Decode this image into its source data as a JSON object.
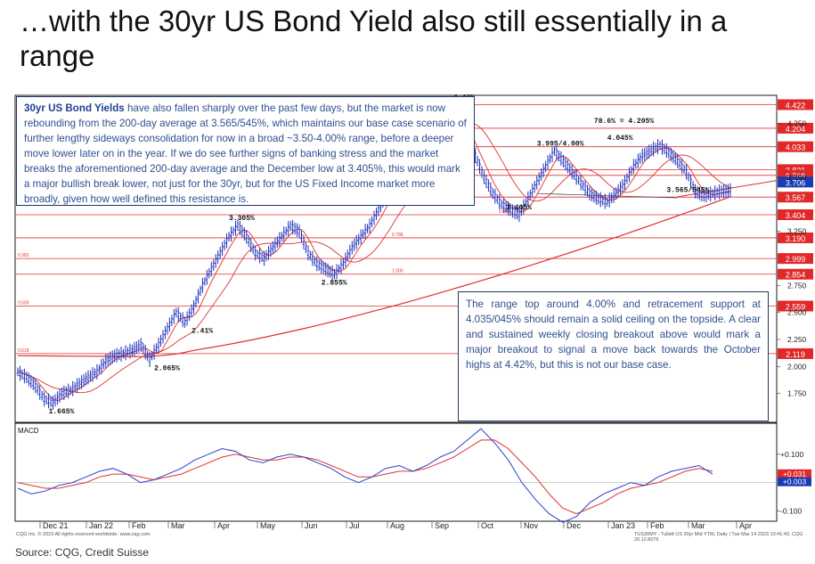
{
  "title": "…with the 30yr US Bond Yield also still essentially in a range",
  "callout_top": {
    "bold": "30yr US Bond Yields",
    "text": " have also fallen sharply over the past few days, but the market is now rebounding from the 200-day average at 3.565/545%, which maintains our base case scenario of further lengthy sideways consolidation for now in a broad ~3.50-4.00% range, before a deeper move lower later on in the year. If we do see further signs of banking stress and the market breaks the aforementioned 200-day average and the December low at 3.405%, this would mark a major bullish break lower, not just for the 30yr, but for the US Fixed Income market more broadly, given how well defined this resistance is."
  },
  "callout_bottom": {
    "text": "The range top around 4.00% and retracement support at 4.035/045% should remain a solid ceiling on the topside. A clear and sustained weekly closing breakout above would mark a major breakout to signal a move back towards the October highs at 4.42%, but this is not our base case."
  },
  "source": "Source: CQG, Credit Suisse",
  "footer_left": "CQG Inc. © 2023 All rights reserved worldwide. www.cqg.com",
  "footer_right": "TUS30MY - Tullett US 30yr Mid YTM, Daily | Tue Mar 14 2023 10:41:43, CQG 20.12.8076",
  "chart_data": {
    "type": "line",
    "ylim": [
      1.5,
      4.5
    ],
    "x": [
      0,
      4,
      8,
      12,
      16,
      20,
      24,
      28,
      32,
      36,
      40,
      44,
      48,
      52,
      56,
      60,
      64,
      68,
      72,
      76,
      80,
      84,
      88,
      92,
      96,
      100,
      104,
      108,
      112,
      116,
      120,
      124,
      128,
      132,
      136,
      140,
      144,
      148,
      152,
      156,
      160,
      164,
      168,
      172,
      176,
      180,
      184,
      188,
      192,
      196,
      200,
      204,
      208,
      212,
      216,
      220,
      224,
      228,
      232,
      236,
      240,
      244,
      248,
      252,
      256,
      260,
      264,
      268,
      272,
      276,
      280,
      284,
      288,
      292,
      296,
      300,
      304,
      308,
      312,
      316,
      320,
      324
    ],
    "series": [
      {
        "values": [
          1.95,
          1.9,
          1.82,
          1.7,
          1.665,
          1.75,
          1.78,
          1.84,
          1.9,
          1.95,
          2.05,
          2.1,
          2.12,
          2.15,
          2.2,
          2.065,
          2.2,
          2.35,
          2.5,
          2.41,
          2.55,
          2.75,
          2.9,
          3.05,
          3.2,
          3.305,
          3.2,
          3.05,
          3.0,
          3.1,
          3.2,
          3.3,
          3.25,
          3.05,
          2.95,
          2.9,
          2.855,
          2.95,
          3.1,
          3.2,
          3.3,
          3.45,
          3.6,
          3.75,
          3.8,
          3.9,
          4.05,
          4.25,
          4.42,
          4.3,
          4.35,
          4.1,
          3.95,
          3.75,
          3.6,
          3.5,
          3.45,
          3.405,
          3.55,
          3.7,
          3.85,
          3.995,
          3.9,
          3.8,
          3.7,
          3.6,
          3.55,
          3.52,
          3.6,
          3.7,
          3.85,
          3.95,
          4.0,
          4.045,
          3.98,
          3.9,
          3.8,
          3.62,
          3.58,
          3.6,
          3.62,
          3.63
        ]
      }
    ],
    "y_ticks": [
      "1.750",
      "2.000",
      "2.250",
      "2.500",
      "2.750",
      "3.250",
      "3.750",
      "4.250"
    ],
    "x_ticks": [
      "Dec 21",
      "Jan 22",
      "Feb",
      "Mar",
      "Apr",
      "May",
      "Jun",
      "Jul",
      "Aug",
      "Sep",
      "Oct",
      "Nov",
      "Dec",
      "Jan 23",
      "Feb",
      "Mar",
      "Apr"
    ],
    "levels": [
      {
        "value": 4.422,
        "label": "4.422"
      },
      {
        "value": 4.204,
        "label": "4.204"
      },
      {
        "value": 4.033,
        "label": "4.033"
      },
      {
        "value": 3.821,
        "label": "3.821"
      },
      {
        "value": 3.768,
        "label": "3.768"
      },
      {
        "value": 3.567,
        "label": "3.567"
      },
      {
        "value": 3.404,
        "label": "3.404"
      },
      {
        "value": 3.19,
        "label": "3.190"
      },
      {
        "value": 2.999,
        "label": "2.999"
      },
      {
        "value": 2.854,
        "label": "2.854"
      },
      {
        "value": 2.559,
        "label": "2.559"
      },
      {
        "value": 2.119,
        "label": "2.119"
      }
    ],
    "current_value": "3.706",
    "annotations": [
      {
        "text": "4.42%",
        "x": 198,
        "y": 4.42
      },
      {
        "text": "78.6% = 4.205%",
        "x": 262,
        "y": 4.205
      },
      {
        "text": "3.995/4.00%",
        "x": 236,
        "y": 3.995
      },
      {
        "text": "4.045%",
        "x": 268,
        "y": 4.045
      },
      {
        "text": "3.405%",
        "x": 222,
        "y": 3.405
      },
      {
        "text": "3.565/545%",
        "x": 295,
        "y": 3.565
      },
      {
        "text": "3.305%",
        "x": 96,
        "y": 3.305
      },
      {
        "text": "2.855%",
        "x": 138,
        "y": 2.855
      },
      {
        "text": "2.41%",
        "x": 79,
        "y": 2.41
      },
      {
        "text": "2.065%",
        "x": 62,
        "y": 2.065
      },
      {
        "text": "1.665%",
        "x": 14,
        "y": 1.665
      }
    ],
    "fib_labels": [
      "0.236",
      "0.382",
      "0.500",
      "0.618",
      "0.786",
      "1.000",
      "0.000"
    ],
    "macd": {
      "label": "MACD",
      "y_ticks": [
        "+0.100",
        "-0.100"
      ],
      "current": [
        "+0.031",
        "+0.003"
      ],
      "ylim": [
        -0.13,
        0.2
      ],
      "macd_line": [
        -0.02,
        -0.04,
        -0.03,
        -0.01,
        0.0,
        0.02,
        0.04,
        0.05,
        0.03,
        0.0,
        0.01,
        0.03,
        0.05,
        0.08,
        0.1,
        0.12,
        0.11,
        0.08,
        0.07,
        0.09,
        0.1,
        0.09,
        0.07,
        0.05,
        0.02,
        0.0,
        0.02,
        0.05,
        0.06,
        0.04,
        0.06,
        0.09,
        0.11,
        0.15,
        0.19,
        0.14,
        0.08,
        0.0,
        -0.06,
        -0.11,
        -0.14,
        -0.12,
        -0.07,
        -0.04,
        -0.02,
        0.0,
        -0.01,
        0.02,
        0.04,
        0.05,
        0.06,
        0.03
      ],
      "signal_line": [
        0.0,
        -0.01,
        -0.02,
        -0.02,
        -0.01,
        0.0,
        0.02,
        0.03,
        0.03,
        0.02,
        0.01,
        0.02,
        0.03,
        0.05,
        0.07,
        0.09,
        0.1,
        0.09,
        0.08,
        0.08,
        0.09,
        0.09,
        0.08,
        0.06,
        0.04,
        0.02,
        0.02,
        0.03,
        0.04,
        0.04,
        0.05,
        0.07,
        0.09,
        0.12,
        0.15,
        0.15,
        0.12,
        0.07,
        0.02,
        -0.04,
        -0.09,
        -0.11,
        -0.09,
        -0.07,
        -0.04,
        -0.02,
        -0.01,
        0.0,
        0.02,
        0.04,
        0.05,
        0.04
      ]
    }
  }
}
